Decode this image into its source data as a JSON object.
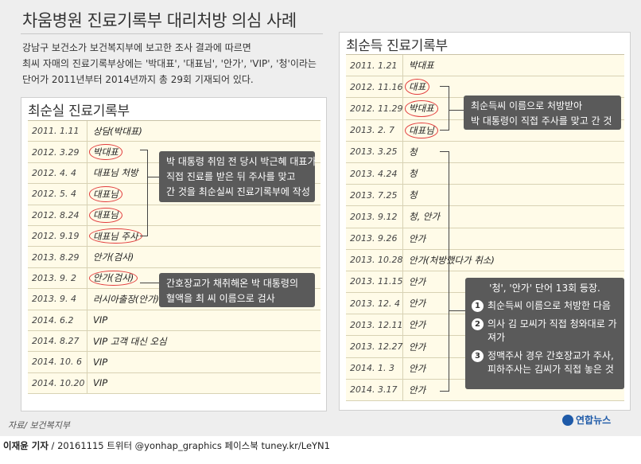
{
  "title": "차움병원 진료기록부 대리처방 의심 사례",
  "intro": [
    "강남구 보건소가 보건복지부에 보고한 조사 결과에 따르면",
    "최씨 자매의 진료기록부상에는 '박대표', '대표님', '안가', 'VIP', '청'이라는",
    "단어가 2011년부터 2014년까지 총 29회 기재되어 있다."
  ],
  "left_panel": {
    "title": "최순실 진료기록부",
    "rows": [
      {
        "date": "2011. 1.11",
        "entry": "상담(박대표)",
        "circled": false
      },
      {
        "date": "2012. 3.29",
        "entry": "박대표",
        "circled": true
      },
      {
        "date": "2012. 4. 4",
        "entry": "대표님 처방",
        "circled": false
      },
      {
        "date": "2012. 5. 4",
        "entry": "대표님",
        "circled": true
      },
      {
        "date": "2012. 8.24",
        "entry": "대표님",
        "circled": true
      },
      {
        "date": "2012. 9.19",
        "entry": "대표님 주사",
        "circled": true
      },
      {
        "date": "2013. 8.29",
        "entry": "안가(검사)",
        "circled": false
      },
      {
        "date": "2013. 9. 2",
        "entry": "안가(검사)",
        "circled": true
      },
      {
        "date": "2013. 9. 4",
        "entry": "러시아출장(안가)",
        "circled": false
      },
      {
        "date": "2014. 6.2",
        "entry": "VIP",
        "circled": false
      },
      {
        "date": "2014. 8.27",
        "entry": "VIP 고객 대신 오심",
        "circled": false
      },
      {
        "date": "2014. 10. 6",
        "entry": "VIP",
        "circled": false
      },
      {
        "date": "2014. 10.20",
        "entry": "VIP",
        "circled": false
      }
    ]
  },
  "right_panel": {
    "title": "최순득 진료기록부",
    "rows": [
      {
        "date": "2011. 1.21",
        "entry": "박대표",
        "circled": false
      },
      {
        "date": "2012. 11.16",
        "entry": "대표",
        "circled": true
      },
      {
        "date": "2012. 11.29",
        "entry": "박대표",
        "circled": true
      },
      {
        "date": "2013. 2. 7",
        "entry": "대표님",
        "circled": true
      },
      {
        "date": "2013. 3.25",
        "entry": "청",
        "circled": false
      },
      {
        "date": "2013. 4.24",
        "entry": "청",
        "circled": false
      },
      {
        "date": "2013. 7.25",
        "entry": "청",
        "circled": false
      },
      {
        "date": "2013. 9.12",
        "entry": "청, 안가",
        "circled": false
      },
      {
        "date": "2013. 9.26",
        "entry": "안가",
        "circled": false
      },
      {
        "date": "2013. 10.28",
        "entry": "안가(처방했다가 취소)",
        "circled": false
      },
      {
        "date": "2013. 11.15",
        "entry": "안가",
        "circled": false
      },
      {
        "date": "2013. 12. 4",
        "entry": "안가",
        "circled": false
      },
      {
        "date": "2013. 12.11",
        "entry": "안가",
        "circled": false
      },
      {
        "date": "2013. 12.27",
        "entry": "안가",
        "circled": false
      },
      {
        "date": "2014. 1. 3",
        "entry": "안가",
        "circled": false
      },
      {
        "date": "2014. 3.17",
        "entry": "안가",
        "circled": false
      }
    ]
  },
  "notes": {
    "note1": [
      "박 대통령 취임 전 당시 박근혜 대표가",
      "직접 진료를 받은 뒤 주사를 맞고",
      "간 것을 최순실씨 진료기록부에 작성"
    ],
    "note2": [
      "간호장교가 채취해온 박 대통령의",
      "혈액을 최 씨 이름으로 검사"
    ],
    "note3": [
      "최순득씨 이름으로 처방받아",
      "박 대통령이 직접 주사를 맞고 간 것"
    ],
    "note4": {
      "heading": "'청', '안가' 단어 13회 등장.",
      "items": [
        {
          "num": "1",
          "text": "최순득씨 이름으로 처방한 다음"
        },
        {
          "num": "2",
          "text": "의사 김 모씨가 직접 청와대로 가져가"
        },
        {
          "num": "3",
          "text": "정맥주사 경우 간호장교가 주사, 피하주사는 김씨가 직접 놓은 것"
        }
      ]
    }
  },
  "source": "자료/ 보건복지부",
  "logo": "연합뉴스",
  "credit": {
    "author": "이재윤 기자",
    "rest": " / 20161115   트위터 @yonhap_graphics  페이스북 tuney.kr/LeYN1"
  },
  "colors": {
    "circle": "#e23c3c",
    "note_bg": "#5a5a5a",
    "table_bg": "#fffbe8",
    "logo": "#1e5aa8"
  }
}
